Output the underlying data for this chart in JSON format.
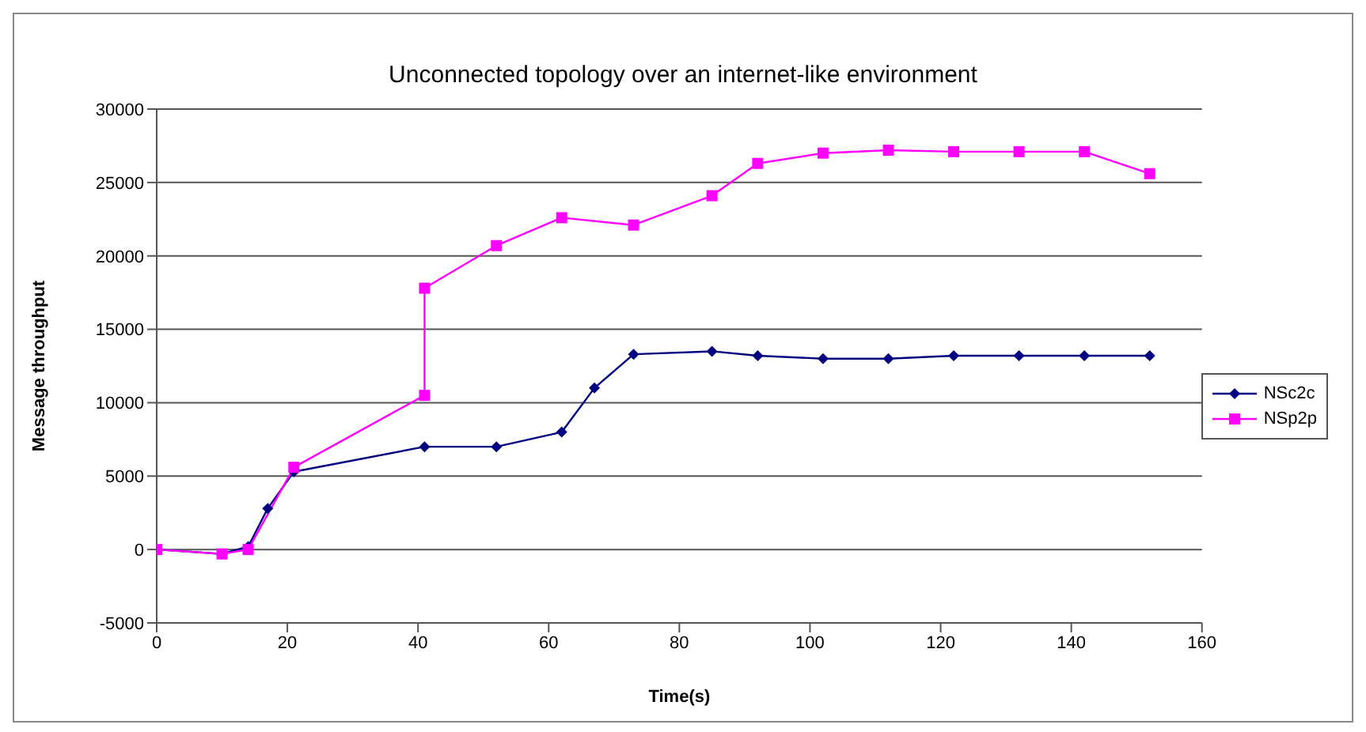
{
  "chart_data": {
    "type": "line",
    "title": "Unconnected topology over an internet-like environment",
    "xlabel": "Time(s)",
    "ylabel": "Message throughput",
    "series": [
      {
        "name": "NSc2c",
        "color": "#000080",
        "marker": "diamond",
        "x": [
          0,
          10,
          14,
          17,
          21,
          41,
          52,
          62,
          67,
          73,
          85,
          92,
          102,
          112,
          122,
          132,
          142,
          152
        ],
        "values": [
          0,
          -300,
          200,
          2800,
          5300,
          7000,
          7000,
          8000,
          11000,
          13300,
          13500,
          13200,
          13000,
          13000,
          13200,
          13200,
          13200,
          13200
        ]
      },
      {
        "name": "NSp2p",
        "color": "#ff00ff",
        "marker": "square",
        "x": [
          0,
          10,
          14,
          21,
          41,
          41,
          52,
          62,
          73,
          85,
          92,
          102,
          112,
          122,
          132,
          142,
          152
        ],
        "values": [
          0,
          -300,
          0,
          5600,
          10500,
          17800,
          20700,
          22600,
          22100,
          24100,
          26300,
          27000,
          27200,
          27100,
          27100,
          27100,
          25600
        ]
      }
    ],
    "xlim": [
      0,
      160
    ],
    "xticks": [
      0,
      20,
      40,
      60,
      80,
      100,
      120,
      140,
      160
    ],
    "ylim": [
      -5000,
      30000
    ],
    "yticks": [
      -5000,
      0,
      5000,
      10000,
      15000,
      20000,
      25000,
      30000
    ],
    "grid": "y",
    "legend": "right",
    "line_style": "solid"
  }
}
